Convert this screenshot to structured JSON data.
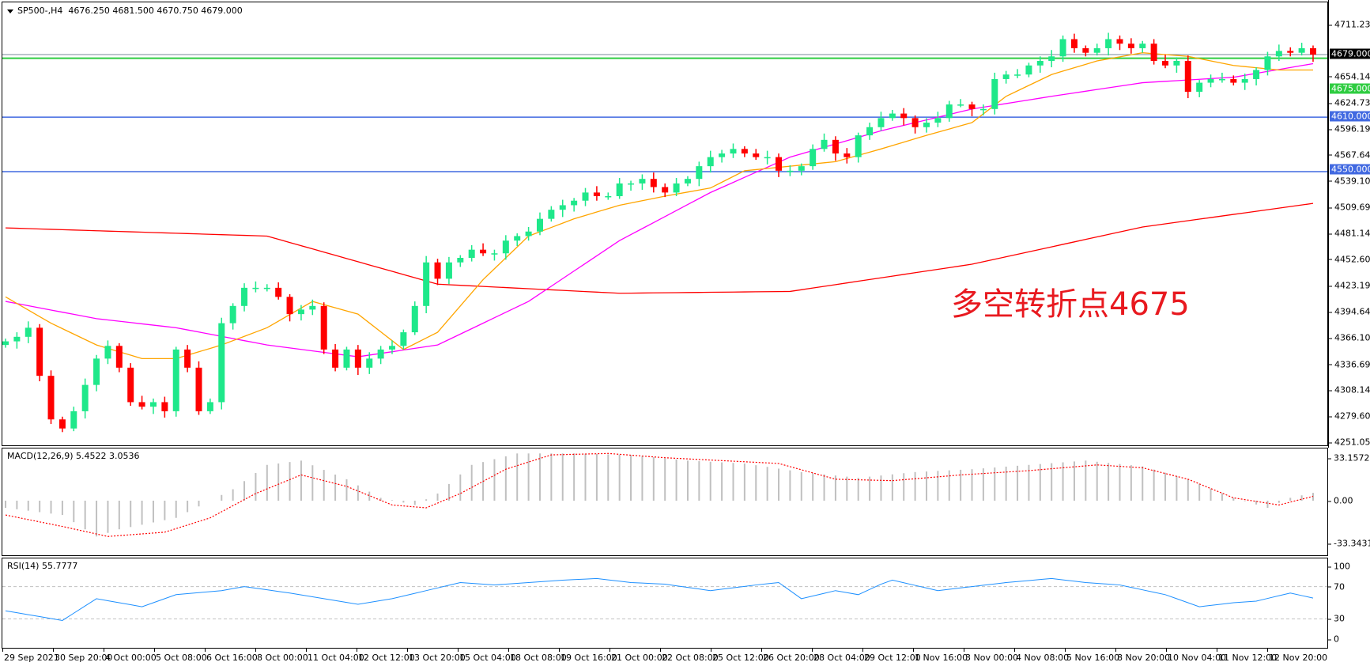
{
  "header": {
    "symbol": "SP500-,H4",
    "ohlc": "4676.250 4681.500 4670.750 4679.000"
  },
  "annotation": "多空转折点4675",
  "colors": {
    "bull": "#1ee88a",
    "bear": "#ff0000",
    "ma_slow": "#ff0000",
    "ma_mid": "#ff00ff",
    "ma_fast": "#ffa500",
    "support": "#4169e1",
    "pivot": "#2ecc40",
    "price_line": "#778899",
    "macd_hist": "#c0c0c0",
    "macd_signal": "#ff0000",
    "rsi": "#1e90ff",
    "rsi_levels": "#c0c0c0"
  },
  "price_axis": {
    "ticks": [
      4711.235,
      4654.145,
      4624.735,
      4596.19,
      4567.645,
      4539.1,
      4509.69,
      4481.145,
      4452.6,
      4423.19,
      4394.645,
      4366.1,
      4336.69,
      4308.145,
      4279.6,
      4251.055
    ],
    "ylim": [
      4251.055,
      4711.235
    ]
  },
  "horizontal_lines": [
    {
      "label": "4679.000",
      "value": 4679.0,
      "kind": "price_line"
    },
    {
      "label": "4675.000",
      "value": 4675.0,
      "kind": "pivot"
    },
    {
      "label": "4610.000",
      "value": 4610.0,
      "kind": "support"
    },
    {
      "label": "4550.000",
      "value": 4550.0,
      "kind": "support"
    }
  ],
  "time_axis": [
    "29 Sep 2021",
    "30 Sep 20:00",
    "4 Oct 00:00",
    "5 Oct 08:00",
    "6 Oct 16:00",
    "8 Oct 00:00",
    "11 Oct 04:00",
    "12 Oct 12:00",
    "13 Oct 20:00",
    "15 Oct 04:00",
    "18 Oct 08:00",
    "19 Oct 16:00",
    "21 Oct 00:00",
    "22 Oct 08:00",
    "25 Oct 12:00",
    "26 Oct 20:00",
    "28 Oct 04:00",
    "29 Oct 12:00",
    "1 Nov 16:00",
    "3 Nov 00:00",
    "4 Nov 08:00",
    "5 Nov 16:00",
    "8 Nov 20:00",
    "10 Nov 04:00",
    "11 Nov 12:00",
    "12 Nov 20:00"
  ],
  "chart_data": [
    {
      "type": "candlestick",
      "title": "SP500-,H4",
      "close": [
        4363,
        4368,
        4378,
        4325,
        4277,
        4267,
        4286,
        4315,
        4344,
        4358,
        4334,
        4296,
        4291,
        4296,
        4286,
        4354,
        4334,
        4286,
        4296,
        4383,
        4402,
        4422,
        4422,
        4422,
        4412,
        4393,
        4398,
        4402,
        4354,
        4334,
        4354,
        4334,
        4344,
        4354,
        4358,
        4373,
        4402,
        4450,
        4432,
        4450,
        4455,
        4464,
        4460,
        4460,
        4474,
        4479,
        4484,
        4498,
        4508,
        4513,
        4518,
        4527,
        4523,
        4523,
        4537,
        4537,
        4542,
        4533,
        4527,
        4537,
        4542,
        4556,
        4566,
        4570,
        4575,
        4570,
        4566,
        4566,
        4551,
        4551,
        4556,
        4575,
        4585,
        4570,
        4566,
        4590,
        4599,
        4609,
        4614,
        4609,
        4599,
        4604,
        4609,
        4624,
        4624,
        4619,
        4619,
        4652,
        4657,
        4657,
        4667,
        4672,
        4677,
        4696,
        4686,
        4681,
        4686,
        4696,
        4691,
        4686,
        4691,
        4672,
        4667,
        4672,
        4638,
        4648,
        4652,
        4652,
        4648,
        4652,
        4662,
        4677,
        4683,
        4681,
        4686,
        4679
      ],
      "moving_averages": [
        {
          "color_key": "ma_slow",
          "points": [
            [
              0,
              4488
            ],
            [
              23,
              4479
            ],
            [
              38,
              4426
            ],
            [
              54,
              4416
            ],
            [
              69,
              4418
            ],
            [
              85,
              4448
            ],
            [
              100,
              4489
            ],
            [
              115,
              4515
            ]
          ]
        },
        {
          "color_key": "ma_mid",
          "points": [
            [
              0,
              4407
            ],
            [
              8,
              4388
            ],
            [
              15,
              4378
            ],
            [
              23,
              4359
            ],
            [
              31,
              4346
            ],
            [
              38,
              4359
            ],
            [
              46,
              4407
            ],
            [
              54,
              4474
            ],
            [
              62,
              4527
            ],
            [
              69,
              4566
            ],
            [
              77,
              4595
            ],
            [
              85,
              4619
            ],
            [
              92,
              4633
            ],
            [
              100,
              4648
            ],
            [
              108,
              4654
            ],
            [
              115,
              4669
            ]
          ]
        },
        {
          "color_key": "ma_fast",
          "points": [
            [
              0,
              4412
            ],
            [
              4,
              4383
            ],
            [
              8,
              4359
            ],
            [
              12,
              4344
            ],
            [
              15,
              4344
            ],
            [
              19,
              4359
            ],
            [
              23,
              4378
            ],
            [
              27,
              4407
            ],
            [
              31,
              4393
            ],
            [
              35,
              4354
            ],
            [
              38,
              4373
            ],
            [
              42,
              4431
            ],
            [
              46,
              4479
            ],
            [
              50,
              4498
            ],
            [
              54,
              4513
            ],
            [
              58,
              4523
            ],
            [
              62,
              4532
            ],
            [
              65,
              4551
            ],
            [
              69,
              4556
            ],
            [
              73,
              4561
            ],
            [
              77,
              4575
            ],
            [
              81,
              4590
            ],
            [
              85,
              4604
            ],
            [
              88,
              4633
            ],
            [
              92,
              4657
            ],
            [
              96,
              4672
            ],
            [
              100,
              4681
            ],
            [
              104,
              4677
            ],
            [
              108,
              4667
            ],
            [
              112,
              4662
            ],
            [
              115,
              4662
            ]
          ]
        }
      ]
    },
    {
      "type": "bar",
      "title": "MACD(12,26,9) 5.4522 3.0536",
      "ylim": [
        -33.3431,
        33.1572
      ],
      "ticks": [
        "33.1572",
        "0.00",
        "-33.3431"
      ],
      "tick_values": [
        33.1572,
        0,
        -33.3431
      ],
      "macd": [
        [
          0,
          -5
        ],
        [
          5,
          -10
        ],
        [
          8,
          -25
        ],
        [
          10,
          -20
        ],
        [
          15,
          -12
        ],
        [
          18,
          0
        ],
        [
          20,
          8
        ],
        [
          23,
          25
        ],
        [
          26,
          28
        ],
        [
          30,
          15
        ],
        [
          33,
          2
        ],
        [
          36,
          -3
        ],
        [
          38,
          5
        ],
        [
          41,
          25
        ],
        [
          45,
          33
        ],
        [
          50,
          33
        ],
        [
          55,
          32
        ],
        [
          60,
          28
        ],
        [
          65,
          26
        ],
        [
          70,
          20
        ],
        [
          75,
          16
        ],
        [
          80,
          20
        ],
        [
          85,
          22
        ],
        [
          90,
          25
        ],
        [
          95,
          28
        ],
        [
          100,
          24
        ],
        [
          104,
          15
        ],
        [
          108,
          2
        ],
        [
          111,
          -5
        ],
        [
          113,
          2
        ],
        [
          115,
          5.4522
        ]
      ],
      "signal": [
        [
          0,
          -10
        ],
        [
          5,
          -18
        ],
        [
          9,
          -25
        ],
        [
          14,
          -22
        ],
        [
          18,
          -12
        ],
        [
          22,
          5
        ],
        [
          26,
          18
        ],
        [
          30,
          10
        ],
        [
          34,
          -3
        ],
        [
          37,
          -5
        ],
        [
          40,
          5
        ],
        [
          44,
          22
        ],
        [
          48,
          32
        ],
        [
          53,
          33
        ],
        [
          58,
          30
        ],
        [
          63,
          28
        ],
        [
          68,
          26
        ],
        [
          73,
          15
        ],
        [
          78,
          14
        ],
        [
          84,
          18
        ],
        [
          90,
          21
        ],
        [
          96,
          25
        ],
        [
          100,
          23
        ],
        [
          104,
          15
        ],
        [
          108,
          2
        ],
        [
          112,
          -3
        ],
        [
          115,
          3.0536
        ]
      ]
    },
    {
      "type": "line",
      "title": "RSI(14) 55.7777",
      "ylim": [
        0,
        100
      ],
      "ticks": [
        "100",
        "70",
        "30",
        "0"
      ],
      "tick_values": [
        100,
        70,
        30,
        0
      ],
      "levels": [
        70,
        30
      ],
      "rsi": [
        [
          0,
          40
        ],
        [
          5,
          28
        ],
        [
          8,
          55
        ],
        [
          12,
          45
        ],
        [
          15,
          60
        ],
        [
          19,
          65
        ],
        [
          21,
          70
        ],
        [
          25,
          62
        ],
        [
          28,
          55
        ],
        [
          31,
          48
        ],
        [
          34,
          55
        ],
        [
          37,
          65
        ],
        [
          40,
          75
        ],
        [
          43,
          72
        ],
        [
          49,
          78
        ],
        [
          52,
          80
        ],
        [
          55,
          75
        ],
        [
          58,
          73
        ],
        [
          62,
          65
        ],
        [
          66,
          72
        ],
        [
          68,
          75
        ],
        [
          70,
          55
        ],
        [
          73,
          65
        ],
        [
          75,
          60
        ],
        [
          77,
          73
        ],
        [
          78,
          78
        ],
        [
          82,
          65
        ],
        [
          85,
          70
        ],
        [
          88,
          75
        ],
        [
          92,
          80
        ],
        [
          95,
          75
        ],
        [
          98,
          72
        ],
        [
          102,
          60
        ],
        [
          105,
          45
        ],
        [
          108,
          50
        ],
        [
          110,
          52
        ],
        [
          113,
          62
        ],
        [
          115,
          55.7777
        ]
      ]
    }
  ]
}
